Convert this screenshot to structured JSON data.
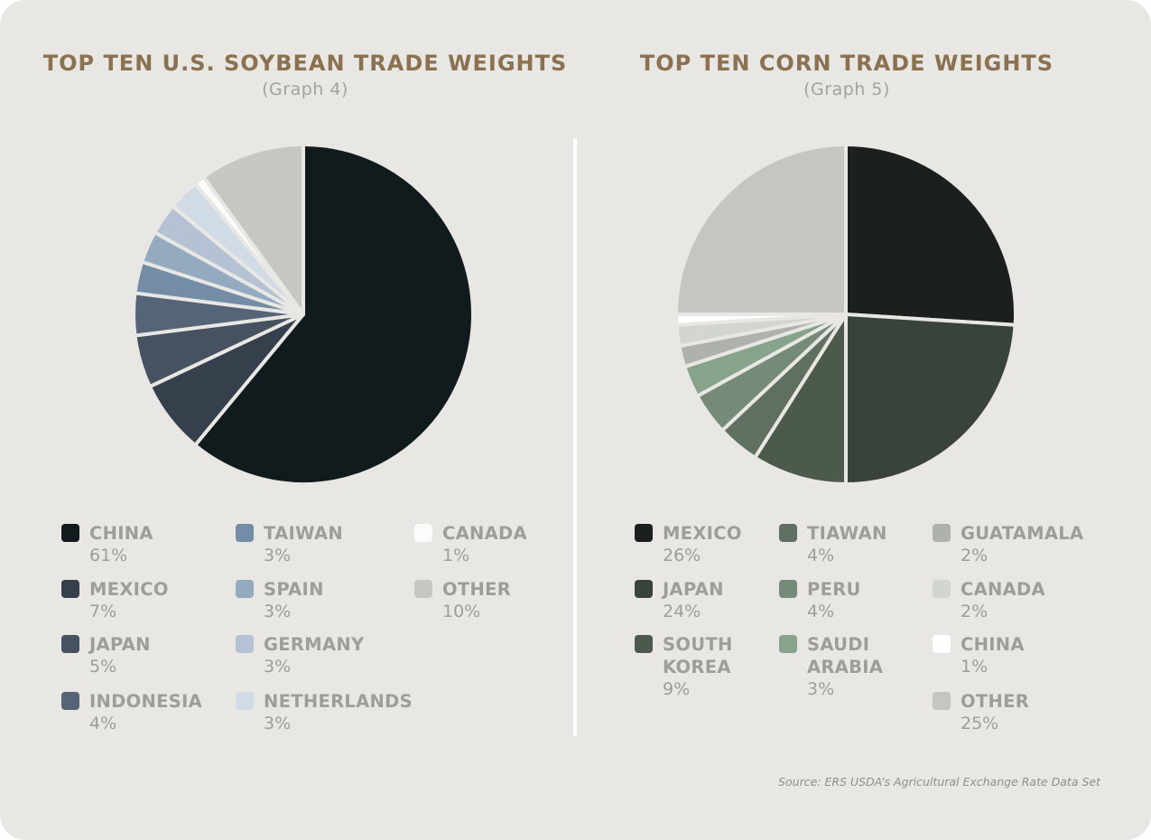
{
  "chart_data": [
    {
      "type": "pie",
      "title": "TOP TEN U.S. SOYBEAN TRADE WEIGHTS",
      "subtitle": "(Graph 4)",
      "slices": [
        {
          "label": "CHINA",
          "value": 61,
          "display": "61%",
          "color": "#111b1d"
        },
        {
          "label": "MEXICO",
          "value": 7,
          "display": "7%",
          "color": "#363f4c"
        },
        {
          "label": "JAPAN",
          "value": 5,
          "display": "5%",
          "color": "#46525f"
        },
        {
          "label": "INDONESIA",
          "value": 4,
          "display": "4%",
          "color": "#556577"
        },
        {
          "label": "TAIWAN",
          "value": 3,
          "display": "3%",
          "color": "#748da6"
        },
        {
          "label": "SPAIN",
          "value": 3,
          "display": "3%",
          "color": "#93aac1"
        },
        {
          "label": "GERMANY",
          "value": 3,
          "display": "3%",
          "color": "#b4c2d4"
        },
        {
          "label": "NETHERLANDS",
          "value": 3,
          "display": "3%",
          "color": "#d1dbe6"
        },
        {
          "label": "CANADA",
          "value": 1,
          "display": "1%",
          "color": "#fbfbfb"
        },
        {
          "label": "OTHER",
          "value": 10,
          "display": "10%",
          "color": "#c7c7c2"
        }
      ]
    },
    {
      "type": "pie",
      "title": "TOP TEN CORN TRADE WEIGHTS",
      "subtitle": "(Graph 5)",
      "slices": [
        {
          "label": "MEXICO",
          "value": 26,
          "display": "26%",
          "color": "#1b1f1e"
        },
        {
          "label": "JAPAN",
          "value": 24,
          "display": "24%",
          "color": "#39423b"
        },
        {
          "label": "SOUTH KOREA",
          "value": 9,
          "display": "9%",
          "color": "#4b5a4d"
        },
        {
          "label": "TIAWAN",
          "value": 4,
          "display": "4%",
          "color": "#5f6f61"
        },
        {
          "label": "PERU",
          "value": 4,
          "display": "4%",
          "color": "#768a7a"
        },
        {
          "label": "SAUDI ARABIA",
          "value": 3,
          "display": "3%",
          "color": "#88a38c"
        },
        {
          "label": "GUATAMALA",
          "value": 2,
          "display": "2%",
          "color": "#afb2aa"
        },
        {
          "label": "CANADA",
          "value": 2,
          "display": "2%",
          "color": "#d3d6d0"
        },
        {
          "label": "CHINA",
          "value": 1,
          "display": "1%",
          "color": "#ffffff"
        },
        {
          "label": "OTHER",
          "value": 25,
          "display": "25%",
          "color": "#c6c6c1"
        }
      ]
    }
  ],
  "source": "Source: ERS USDA’s Agricultural Exchange Rate Data Set"
}
